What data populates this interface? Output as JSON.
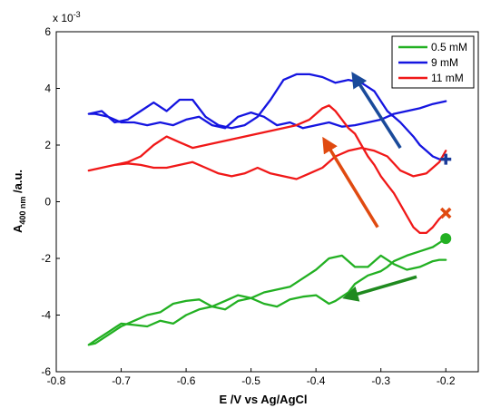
{
  "chart_data": {
    "type": "line",
    "xlabel": "E /V vs Ag/AgCl",
    "ylabel_main": "A",
    "ylabel_sub": "400 nm",
    "ylabel_unit": " /a.u.",
    "y_multiplier": "x 10",
    "y_multiplier_exp": "-3",
    "xlim": [
      -0.8,
      -0.15
    ],
    "ylim": [
      -6,
      6
    ],
    "xticks": [
      -0.8,
      -0.7,
      -0.6,
      -0.5,
      -0.4,
      -0.3,
      -0.2
    ],
    "xtick_labels": [
      "-0.8",
      "-0.7",
      "-0.6",
      "-0.5",
      "-0.4",
      "-0.3",
      "-0.2"
    ],
    "yticks": [
      -6,
      -4,
      -2,
      0,
      2,
      4,
      6
    ],
    "ytick_labels": [
      "-6",
      "-4",
      "-2",
      "0",
      "2",
      "4",
      "6"
    ],
    "legend_position": "top-right",
    "series": [
      {
        "name": "0.5 mM",
        "color": "#22b022",
        "end_marker": "circle",
        "x": [
          -0.2,
          -0.21,
          -0.22,
          -0.24,
          -0.26,
          -0.28,
          -0.29,
          -0.3,
          -0.32,
          -0.34,
          -0.35,
          -0.37,
          -0.38,
          -0.4,
          -0.42,
          -0.44,
          -0.46,
          -0.48,
          -0.5,
          -0.52,
          -0.54,
          -0.56,
          -0.58,
          -0.6,
          -0.62,
          -0.64,
          -0.66,
          -0.68,
          -0.7,
          -0.72,
          -0.74,
          -0.75,
          -0.74,
          -0.72,
          -0.7,
          -0.68,
          -0.66,
          -0.64,
          -0.62,
          -0.6,
          -0.58,
          -0.56,
          -0.54,
          -0.52,
          -0.5,
          -0.48,
          -0.46,
          -0.44,
          -0.42,
          -0.4,
          -0.38,
          -0.36,
          -0.34,
          -0.32,
          -0.3,
          -0.28,
          -0.26,
          -0.24,
          -0.22,
          -0.21,
          -0.2
        ],
        "y": [
          -1.3,
          -1.45,
          -1.6,
          -1.75,
          -1.9,
          -2.1,
          -2.3,
          -2.45,
          -2.6,
          -2.9,
          -3.2,
          -3.5,
          -3.6,
          -3.3,
          -3.35,
          -3.45,
          -3.7,
          -3.6,
          -3.4,
          -3.3,
          -3.5,
          -3.7,
          -3.45,
          -3.5,
          -3.6,
          -3.9,
          -4.0,
          -4.2,
          -4.4,
          -4.7,
          -5.0,
          -5.05,
          -4.9,
          -4.6,
          -4.3,
          -4.35,
          -4.4,
          -4.2,
          -4.3,
          -4.0,
          -3.8,
          -3.7,
          -3.8,
          -3.5,
          -3.4,
          -3.2,
          -3.1,
          -3.0,
          -2.7,
          -2.4,
          -2.0,
          -1.9,
          -2.3,
          -2.3,
          -1.9,
          -2.2,
          -2.4,
          -2.3,
          -2.1,
          -2.05,
          -2.05
        ]
      },
      {
        "name": "9 mM",
        "color": "#1515e0",
        "end_marker": "plus",
        "x": [
          -0.2,
          -0.21,
          -0.22,
          -0.23,
          -0.24,
          -0.25,
          -0.27,
          -0.29,
          -0.31,
          -0.33,
          -0.35,
          -0.37,
          -0.39,
          -0.41,
          -0.43,
          -0.45,
          -0.47,
          -0.49,
          -0.51,
          -0.53,
          -0.55,
          -0.57,
          -0.59,
          -0.61,
          -0.63,
          -0.65,
          -0.67,
          -0.69,
          -0.71,
          -0.73,
          -0.75,
          -0.74,
          -0.72,
          -0.7,
          -0.68,
          -0.66,
          -0.64,
          -0.62,
          -0.6,
          -0.58,
          -0.56,
          -0.54,
          -0.52,
          -0.5,
          -0.48,
          -0.46,
          -0.44,
          -0.42,
          -0.4,
          -0.38,
          -0.36,
          -0.34,
          -0.32,
          -0.3,
          -0.28,
          -0.26,
          -0.24,
          -0.22,
          -0.2
        ],
        "y": [
          1.5,
          1.5,
          1.6,
          1.8,
          2.0,
          2.3,
          2.8,
          3.2,
          3.9,
          4.2,
          4.3,
          4.2,
          4.4,
          4.5,
          4.5,
          4.3,
          3.6,
          3.0,
          2.7,
          2.6,
          2.7,
          3.0,
          3.6,
          3.6,
          3.2,
          3.5,
          3.2,
          2.9,
          2.8,
          3.2,
          3.1,
          3.1,
          3.0,
          2.8,
          2.8,
          2.7,
          2.8,
          2.7,
          2.9,
          3.0,
          2.7,
          2.6,
          3.0,
          3.15,
          3.0,
          2.7,
          2.8,
          2.6,
          2.7,
          2.8,
          2.65,
          2.7,
          2.8,
          2.9,
          3.1,
          3.2,
          3.3,
          3.45,
          3.55
        ]
      },
      {
        "name": "11 mM",
        "color": "#f01818",
        "end_marker": "x",
        "x": [
          -0.2,
          -0.21,
          -0.22,
          -0.23,
          -0.24,
          -0.25,
          -0.26,
          -0.27,
          -0.28,
          -0.29,
          -0.3,
          -0.31,
          -0.32,
          -0.33,
          -0.34,
          -0.35,
          -0.36,
          -0.37,
          -0.38,
          -0.39,
          -0.41,
          -0.43,
          -0.45,
          -0.47,
          -0.49,
          -0.51,
          -0.53,
          -0.55,
          -0.57,
          -0.59,
          -0.61,
          -0.63,
          -0.65,
          -0.67,
          -0.69,
          -0.71,
          -0.73,
          -0.75,
          -0.73,
          -0.71,
          -0.69,
          -0.67,
          -0.65,
          -0.63,
          -0.61,
          -0.59,
          -0.57,
          -0.55,
          -0.53,
          -0.51,
          -0.49,
          -0.47,
          -0.45,
          -0.43,
          -0.41,
          -0.39,
          -0.37,
          -0.35,
          -0.33,
          -0.31,
          -0.29,
          -0.27,
          -0.25,
          -0.23,
          -0.21,
          -0.2
        ],
        "y": [
          -0.4,
          -0.6,
          -0.9,
          -1.1,
          -1.1,
          -0.9,
          -0.5,
          -0.1,
          0.3,
          0.6,
          0.9,
          1.3,
          1.6,
          2.0,
          2.4,
          2.6,
          2.9,
          3.2,
          3.4,
          3.3,
          2.9,
          2.7,
          2.6,
          2.5,
          2.4,
          2.3,
          2.2,
          2.1,
          2.0,
          1.9,
          2.1,
          2.3,
          2.0,
          1.6,
          1.4,
          1.3,
          1.2,
          1.1,
          1.2,
          1.3,
          1.35,
          1.3,
          1.2,
          1.2,
          1.3,
          1.4,
          1.2,
          1.0,
          0.9,
          1.0,
          1.2,
          1.0,
          0.9,
          0.8,
          1.0,
          1.2,
          1.6,
          1.8,
          1.9,
          1.8,
          1.6,
          1.1,
          0.9,
          1.0,
          1.4,
          1.8
        ]
      }
    ],
    "annotations": [
      {
        "kind": "arrow",
        "color": "#1a4a9a",
        "from": [
          -0.27,
          1.9
        ],
        "to": [
          -0.34,
          4.4
        ]
      },
      {
        "kind": "arrow",
        "color": "#e04a10",
        "from": [
          -0.305,
          -0.9
        ],
        "to": [
          -0.385,
          2.1
        ]
      },
      {
        "kind": "arrow",
        "color": "#1f8a1f",
        "from": [
          -0.245,
          -2.65
        ],
        "to": [
          -0.35,
          -3.35
        ]
      }
    ]
  }
}
